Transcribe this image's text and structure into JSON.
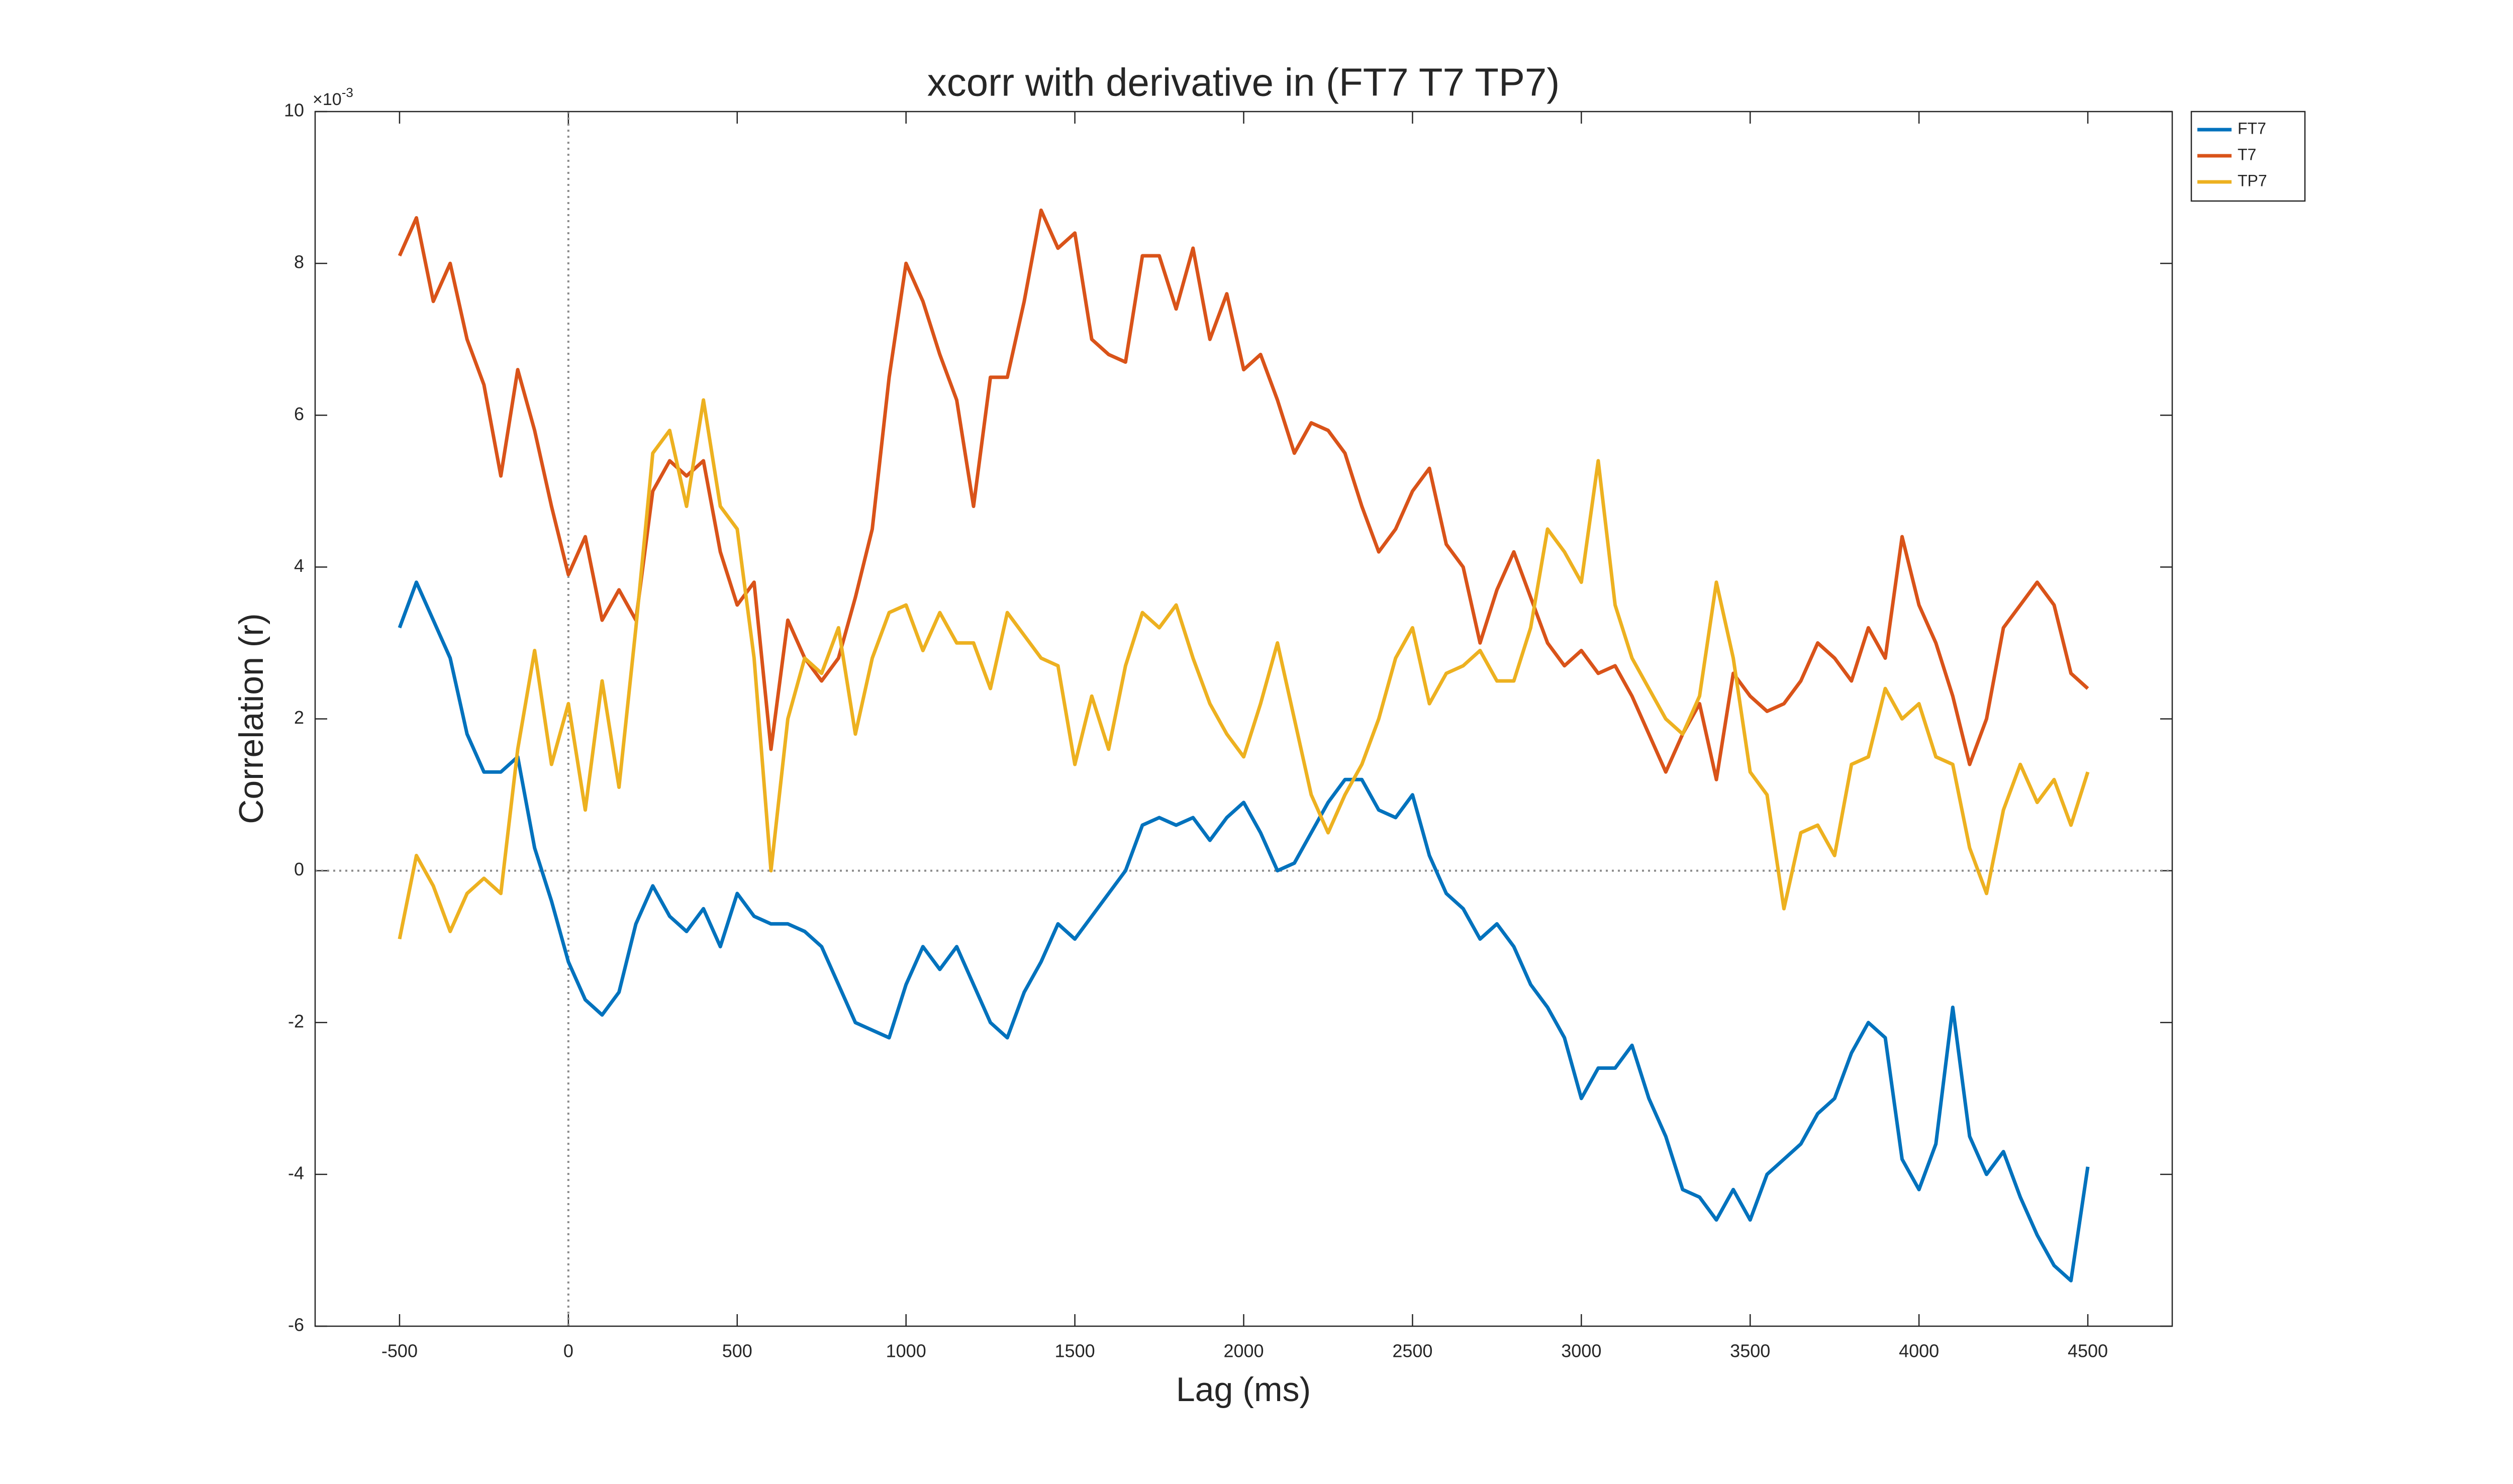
{
  "chart_data": {
    "type": "line",
    "title": "xcorr with derivative in (FT7 T7 TP7)",
    "xlabel": "Lag (ms)",
    "ylabel": "Correlation (r)",
    "y_exponent": {
      "base": "×10",
      "power": "-3"
    },
    "x": [
      -500,
      -450,
      -400,
      -350,
      -300,
      -250,
      -200,
      -150,
      -100,
      -50,
      0,
      50,
      100,
      150,
      200,
      250,
      300,
      350,
      400,
      450,
      500,
      550,
      600,
      650,
      700,
      750,
      800,
      850,
      900,
      950,
      1000,
      1050,
      1100,
      1150,
      1200,
      1250,
      1300,
      1350,
      1400,
      1450,
      1500,
      1550,
      1600,
      1650,
      1700,
      1750,
      1800,
      1850,
      1900,
      1950,
      2000,
      2050,
      2100,
      2150,
      2200,
      2250,
      2300,
      2350,
      2400,
      2450,
      2500,
      2550,
      2600,
      2650,
      2700,
      2750,
      2800,
      2850,
      2900,
      2950,
      3000,
      3050,
      3100,
      3150,
      3200,
      3250,
      3300,
      3350,
      3400,
      3450,
      3500,
      3550,
      3600,
      3650,
      3700,
      3750,
      3800,
      3850,
      3900,
      3950,
      4000,
      4050,
      4100,
      4150,
      4200,
      4250,
      4300,
      4350,
      4400,
      4450,
      4500
    ],
    "series": [
      {
        "name": "FT7",
        "color": "#0072BD",
        "values": [
          3.2,
          3.8,
          3.3,
          2.8,
          1.8,
          1.3,
          1.3,
          1.5,
          0.3,
          -0.4,
          -1.2,
          -1.7,
          -1.9,
          -1.6,
          -0.7,
          -0.2,
          -0.6,
          -0.8,
          -0.5,
          -1.0,
          -0.3,
          -0.6,
          -0.7,
          -0.7,
          -0.8,
          -1.0,
          -1.5,
          -2.0,
          -2.1,
          -2.2,
          -1.5,
          -1.0,
          -1.3,
          -1.0,
          -1.5,
          -2.0,
          -2.2,
          -1.6,
          -1.2,
          -0.7,
          -0.9,
          -0.6,
          -0.3,
          0.0,
          0.6,
          0.7,
          0.6,
          0.7,
          0.4,
          0.7,
          0.9,
          0.5,
          0.0,
          0.1,
          0.5,
          0.9,
          1.2,
          1.2,
          0.8,
          0.7,
          1.0,
          0.2,
          -0.3,
          -0.5,
          -0.9,
          -0.7,
          -1.0,
          -1.5,
          -1.8,
          -2.2,
          -3.0,
          -2.6,
          -2.6,
          -2.3,
          -3.0,
          -3.5,
          -4.2,
          -4.3,
          -4.6,
          -4.2,
          -4.6,
          -4.0,
          -3.8,
          -3.6,
          -3.2,
          -3.0,
          -2.4,
          -2.0,
          -2.2,
          -3.8,
          -4.2,
          -3.6,
          -1.8,
          -3.5,
          -4.0,
          -3.7,
          -4.3,
          -4.8,
          -5.2,
          -5.4,
          -3.9
        ]
      },
      {
        "name": "T7",
        "color": "#D95319",
        "values": [
          8.1,
          8.6,
          7.5,
          8.0,
          7.0,
          6.4,
          5.2,
          6.6,
          5.8,
          4.8,
          3.9,
          4.4,
          3.3,
          3.7,
          3.3,
          5.0,
          5.4,
          5.2,
          5.4,
          4.2,
          3.5,
          3.8,
          1.6,
          3.3,
          2.8,
          2.5,
          2.8,
          3.6,
          4.5,
          6.5,
          8.0,
          7.5,
          6.8,
          6.2,
          4.8,
          6.5,
          6.5,
          7.5,
          8.7,
          8.2,
          8.4,
          7.0,
          6.8,
          6.7,
          8.1,
          8.1,
          7.4,
          8.2,
          7.0,
          7.6,
          6.6,
          6.8,
          6.2,
          5.5,
          5.9,
          5.8,
          5.5,
          4.8,
          4.2,
          4.5,
          5.0,
          5.3,
          4.3,
          4.0,
          3.0,
          3.7,
          4.2,
          3.6,
          3.0,
          2.7,
          2.9,
          2.6,
          2.7,
          2.3,
          1.8,
          1.3,
          1.8,
          2.2,
          1.2,
          2.6,
          2.3,
          2.1,
          2.2,
          2.5,
          3.0,
          2.8,
          2.5,
          3.2,
          2.8,
          4.4,
          3.5,
          3.0,
          2.3,
          1.4,
          2.0,
          3.2,
          3.5,
          3.8,
          3.5,
          2.6,
          2.4
        ]
      },
      {
        "name": "TP7",
        "color": "#EDB120",
        "values": [
          -0.9,
          0.2,
          -0.2,
          -0.8,
          -0.3,
          -0.1,
          -0.3,
          1.6,
          2.9,
          1.4,
          2.2,
          0.8,
          2.5,
          1.1,
          3.2,
          5.5,
          5.8,
          4.8,
          6.2,
          4.8,
          4.5,
          2.8,
          0.0,
          2.0,
          2.8,
          2.6,
          3.2,
          1.8,
          2.8,
          3.4,
          3.5,
          2.9,
          3.4,
          3.0,
          3.0,
          2.4,
          3.4,
          3.1,
          2.8,
          2.7,
          1.4,
          2.3,
          1.6,
          2.7,
          3.4,
          3.2,
          3.5,
          2.8,
          2.2,
          1.8,
          1.5,
          2.2,
          3.0,
          2.0,
          1.0,
          0.5,
          1.0,
          1.4,
          2.0,
          2.8,
          3.2,
          2.2,
          2.6,
          2.7,
          2.9,
          2.5,
          2.5,
          3.2,
          4.5,
          4.2,
          3.8,
          5.4,
          3.5,
          2.8,
          2.4,
          2.0,
          1.8,
          2.3,
          3.8,
          2.8,
          1.3,
          1.0,
          -0.5,
          0.5,
          0.6,
          0.2,
          1.4,
          1.5,
          2.4,
          2.0,
          2.2,
          1.5,
          1.4,
          0.3,
          -0.3,
          0.8,
          1.4,
          0.9,
          1.2,
          0.6,
          1.3
        ]
      }
    ],
    "xlim": [
      -750,
      4750
    ],
    "ylim": [
      -6,
      10
    ],
    "xticks": [
      -500,
      0,
      500,
      1000,
      1500,
      2000,
      2500,
      3000,
      3500,
      4000,
      4500
    ],
    "yticks": [
      -6,
      -4,
      -2,
      0,
      2,
      4,
      6,
      8,
      10
    ],
    "vline": 0,
    "hline": 0,
    "legend": "northeast outside"
  }
}
